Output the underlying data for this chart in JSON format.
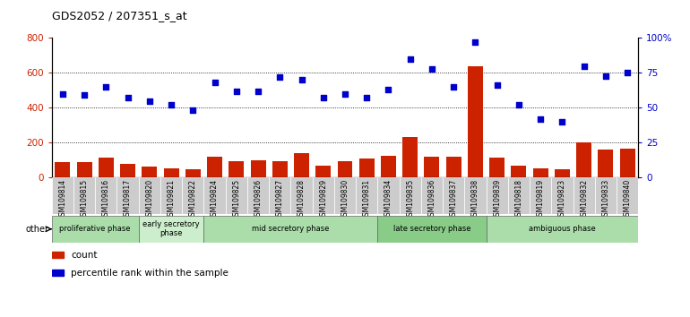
{
  "title": "GDS2052 / 207351_s_at",
  "samples": [
    "GSM109814",
    "GSM109815",
    "GSM109816",
    "GSM109817",
    "GSM109820",
    "GSM109821",
    "GSM109822",
    "GSM109824",
    "GSM109825",
    "GSM109826",
    "GSM109827",
    "GSM109828",
    "GSM109829",
    "GSM109830",
    "GSM109831",
    "GSM109834",
    "GSM109835",
    "GSM109836",
    "GSM109837",
    "GSM109838",
    "GSM109839",
    "GSM109818",
    "GSM109819",
    "GSM109823",
    "GSM109832",
    "GSM109833",
    "GSM109840"
  ],
  "counts": [
    90,
    90,
    115,
    80,
    65,
    55,
    50,
    120,
    95,
    100,
    95,
    140,
    70,
    95,
    110,
    125,
    230,
    120,
    120,
    640,
    115,
    70,
    55,
    45,
    200,
    160,
    165
  ],
  "percentile": [
    60,
    59,
    65,
    57,
    55,
    52,
    48,
    68,
    62,
    62,
    72,
    70,
    57,
    60,
    57,
    63,
    85,
    78,
    65,
    97,
    66,
    52,
    42,
    40,
    80,
    73,
    75
  ],
  "phases": [
    {
      "label": "proliferative phase",
      "start": 0,
      "end": 4,
      "color": "#aaddaa"
    },
    {
      "label": "early secretory\nphase",
      "start": 4,
      "end": 7,
      "color": "#cceecc"
    },
    {
      "label": "mid secretory phase",
      "start": 7,
      "end": 15,
      "color": "#aaddaa"
    },
    {
      "label": "late secretory phase",
      "start": 15,
      "end": 20,
      "color": "#88cc88"
    },
    {
      "label": "ambiguous phase",
      "start": 20,
      "end": 27,
      "color": "#aaddaa"
    }
  ],
  "bar_color": "#cc2200",
  "dot_color": "#0000cc",
  "left_ylim": [
    0,
    800
  ],
  "right_ylim": [
    0,
    100
  ],
  "left_yticks": [
    0,
    200,
    400,
    600,
    800
  ],
  "right_yticks": [
    0,
    25,
    50,
    75,
    100
  ],
  "right_yticklabels": [
    "0",
    "25",
    "50",
    "75",
    "100%"
  ],
  "grid_lines": [
    200,
    400,
    600
  ],
  "other_label": "other",
  "legend_count_label": "count",
  "legend_pct_label": "percentile rank within the sample",
  "tick_bg_color": "#cccccc",
  "phase_border_color": "#666666"
}
